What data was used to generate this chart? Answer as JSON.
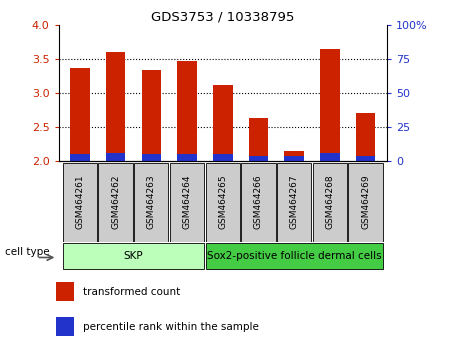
{
  "title": "GDS3753 / 10338795",
  "samples": [
    "GSM464261",
    "GSM464262",
    "GSM464263",
    "GSM464264",
    "GSM464265",
    "GSM464266",
    "GSM464267",
    "GSM464268",
    "GSM464269"
  ],
  "transformed_count": [
    3.37,
    3.6,
    3.33,
    3.47,
    3.12,
    2.63,
    2.15,
    3.65,
    2.7
  ],
  "percentile_rank": [
    5,
    6,
    5,
    5,
    5,
    4,
    4,
    6,
    4
  ],
  "ylim_left": [
    2,
    4
  ],
  "ylim_right": [
    0,
    100
  ],
  "yticks_left": [
    2.0,
    2.5,
    3.0,
    3.5,
    4.0
  ],
  "yticks_right": [
    0,
    25,
    50,
    75,
    100
  ],
  "ytick_labels_right": [
    "0",
    "25",
    "50",
    "75",
    "100%"
  ],
  "bar_color_red": "#cc2200",
  "bar_color_blue": "#2233cc",
  "bar_width": 0.55,
  "cell_groups": [
    {
      "label": "SKP",
      "start": 0,
      "end": 3,
      "color": "#bbffbb"
    },
    {
      "label": "Sox2-positive follicle dermal cells",
      "start": 4,
      "end": 8,
      "color": "#44cc44"
    }
  ],
  "cell_type_label": "cell type",
  "legend_items": [
    {
      "label": "transformed count",
      "color": "#cc2200"
    },
    {
      "label": "percentile rank within the sample",
      "color": "#2233cc"
    }
  ],
  "left_axis_color": "#cc2200",
  "right_axis_color": "#2233cc",
  "base_value": 2.0,
  "xtick_box_color": "#cccccc",
  "fig_width": 4.5,
  "fig_height": 3.54,
  "dpi": 100
}
